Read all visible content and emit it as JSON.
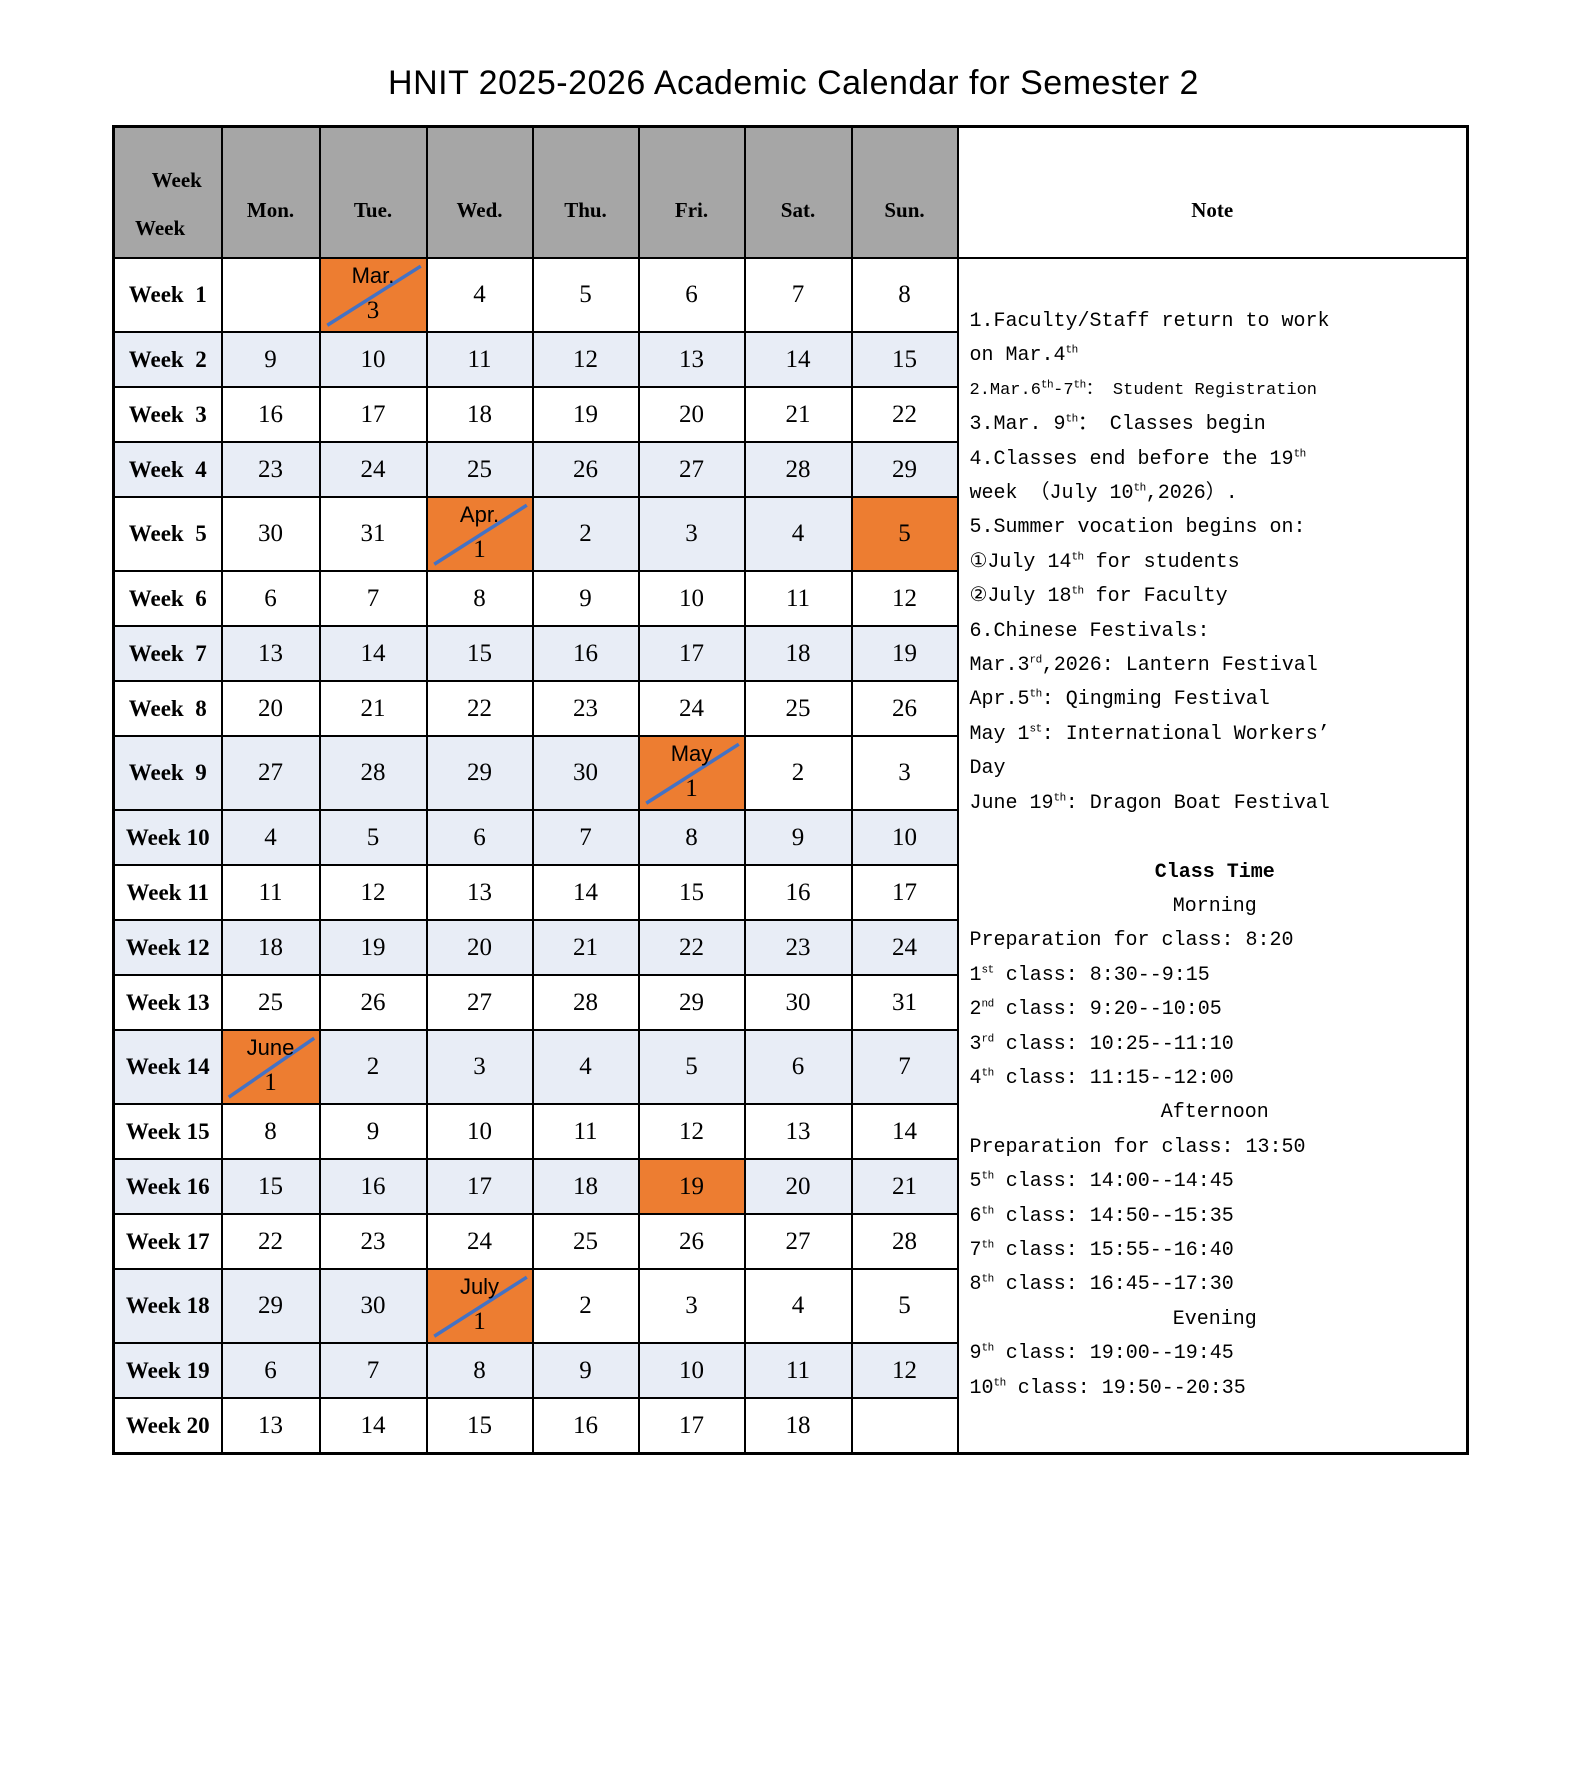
{
  "title": "HNIT 2025-2026 Academic Calendar for Semester 2",
  "colors": {
    "orange": "#ED7D31",
    "light_blue": "#E8EDF6",
    "header_gray": "#A6A6A6",
    "diagonal_blue": "#4472C4"
  },
  "header": {
    "week_top": "Week",
    "week_bottom": "Week",
    "days": [
      "Mon.",
      "Tue.",
      "Wed.",
      "Thu.",
      "Fri.",
      "Sat.",
      "Sun."
    ],
    "note": "Note"
  },
  "calendar": {
    "rows": [
      {
        "label": "Week  1",
        "bg": "white",
        "tall": true,
        "cells": [
          "",
          {
            "month": "Mar.",
            "day": "3",
            "bg": "orange",
            "diag": true
          },
          "4",
          "5",
          "6",
          "7",
          "8"
        ]
      },
      {
        "label": "Week  2",
        "bg": "blue",
        "cells": [
          "9",
          "10",
          "11",
          "12",
          "13",
          "14",
          "15"
        ]
      },
      {
        "label": "Week  3",
        "bg": "white",
        "cells": [
          "16",
          "17",
          "18",
          "19",
          "20",
          "21",
          "22"
        ]
      },
      {
        "label": "Week  4",
        "bg": "blue",
        "cells": [
          "23",
          "24",
          "25",
          "26",
          "27",
          "28",
          "29"
        ]
      },
      {
        "label": "Week  5",
        "bg": "white",
        "tall": true,
        "cells": [
          "30",
          "31",
          {
            "month": "Apr.",
            "day": "1",
            "bg": "orange",
            "diag": true
          },
          {
            "text": "2",
            "bg": "blue"
          },
          {
            "text": "3",
            "bg": "blue"
          },
          {
            "text": "4",
            "bg": "blue"
          },
          {
            "text": "5",
            "bg": "orange"
          }
        ]
      },
      {
        "label": "Week  6",
        "bg": "white",
        "cells": [
          "6",
          "7",
          "8",
          "9",
          "10",
          "11",
          "12"
        ]
      },
      {
        "label": "Week  7",
        "bg": "blue",
        "cells": [
          "13",
          "14",
          "15",
          "16",
          "17",
          "18",
          "19"
        ]
      },
      {
        "label": "Week  8",
        "bg": "white",
        "cells": [
          "20",
          "21",
          "22",
          "23",
          "24",
          "25",
          "26"
        ]
      },
      {
        "label": "Week  9",
        "bg": "blue",
        "tall": true,
        "cells": [
          "27",
          "28",
          "29",
          "30",
          {
            "month": "May",
            "day": "1",
            "bg": "orange",
            "diag": true
          },
          {
            "text": "2",
            "bg": "white"
          },
          {
            "text": "3",
            "bg": "white"
          }
        ]
      },
      {
        "label": "Week 10",
        "bg": "blue",
        "cells": [
          "4",
          "5",
          "6",
          "7",
          "8",
          "9",
          "10"
        ]
      },
      {
        "label": "Week 11",
        "bg": "white",
        "cells": [
          "11",
          "12",
          "13",
          "14",
          "15",
          "16",
          "17"
        ]
      },
      {
        "label": "Week 12",
        "bg": "blue",
        "cells": [
          "18",
          "19",
          "20",
          "21",
          "22",
          "23",
          "24"
        ]
      },
      {
        "label": "Week 13",
        "bg": "white",
        "cells": [
          "25",
          "26",
          "27",
          "28",
          "29",
          "30",
          "31"
        ]
      },
      {
        "label": "Week 14",
        "bg": "blue",
        "tall": true,
        "cells": [
          {
            "month": "June",
            "day": "1",
            "bg": "orange",
            "diag": true
          },
          "2",
          "3",
          "4",
          "5",
          "6",
          "7"
        ]
      },
      {
        "label": "Week 15",
        "bg": "white",
        "cells": [
          "8",
          "9",
          "10",
          "11",
          "12",
          "13",
          "14"
        ]
      },
      {
        "label": "Week 16",
        "bg": "blue",
        "cells": [
          "15",
          "16",
          "17",
          "18",
          {
            "text": "19",
            "bg": "orange"
          },
          "20",
          "21"
        ]
      },
      {
        "label": "Week 17",
        "bg": "white",
        "cells": [
          "22",
          "23",
          "24",
          "25",
          "26",
          "27",
          "28"
        ]
      },
      {
        "label": "Week 18",
        "bg": "blue",
        "tall": true,
        "cells": [
          "29",
          "30",
          {
            "month": "July",
            "day": "1",
            "bg": "orange",
            "diag": true
          },
          {
            "text": "2",
            "bg": "white"
          },
          {
            "text": "3",
            "bg": "white"
          },
          {
            "text": "4",
            "bg": "white"
          },
          {
            "text": "5",
            "bg": "white"
          }
        ]
      },
      {
        "label": "Week 19",
        "bg": "blue",
        "cells": [
          "6",
          "7",
          "8",
          "9",
          "10",
          "11",
          "12"
        ]
      },
      {
        "label": "Week 20",
        "bg": "white",
        "cells": [
          "13",
          "14",
          "15",
          "16",
          "17",
          "18",
          ""
        ]
      }
    ]
  },
  "note": {
    "lines": [
      {
        "text": "1.Faculty/Staff return to work"
      },
      {
        "text": "on Mar.4^{th}"
      },
      {
        "text": "2.Mar.6^{th}-7^{th}： Student Registration",
        "small": true
      },
      {
        "text": "3.Mar. 9^{th}： Classes begin"
      },
      {
        "text": "4.Classes end before the 19^{th}"
      },
      {
        "text": "week （July 10^{th},2026）."
      },
      {
        "text": "5.Summer vocation begins on:"
      },
      {
        "text": "①July 14^{th} for students"
      },
      {
        "text": "②July 18^{th} for Faculty"
      },
      {
        "text": "6.Chinese Festivals:"
      },
      {
        "text": "Mar.3^{rd},2026: Lantern Festival"
      },
      {
        "text": "Apr.5^{th}: Qingming Festival"
      },
      {
        "text": "May 1^{st}: International Workers’"
      },
      {
        "text": "Day"
      },
      {
        "text": "June 19^{th}: Dragon Boat Festival"
      },
      {
        "text": ""
      },
      {
        "text": "Class Time",
        "align": "center",
        "bold": true
      },
      {
        "text": "Morning",
        "align": "center"
      },
      {
        "text": "Preparation for class: 8:20"
      },
      {
        "text": "1^{st} class: 8:30--9:15"
      },
      {
        "text": "2^{nd} class: 9:20--10:05"
      },
      {
        "text": "3^{rd} class: 10:25--11:10"
      },
      {
        "text": "4^{th} class: 11:15--12:00"
      },
      {
        "text": "Afternoon",
        "align": "center"
      },
      {
        "text": "Preparation for class: 13:50"
      },
      {
        "text": "5^{th} class: 14:00--14:45"
      },
      {
        "text": "6^{th} class: 14:50--15:35"
      },
      {
        "text": "7^{th} class: 15:55--16:40"
      },
      {
        "text": "8^{th} class: 16:45--17:30"
      },
      {
        "text": "Evening",
        "align": "center"
      },
      {
        "text": "9^{th} class: 19:00--19:45"
      },
      {
        "text": "10^{th} class: 19:50--20:35"
      }
    ]
  }
}
